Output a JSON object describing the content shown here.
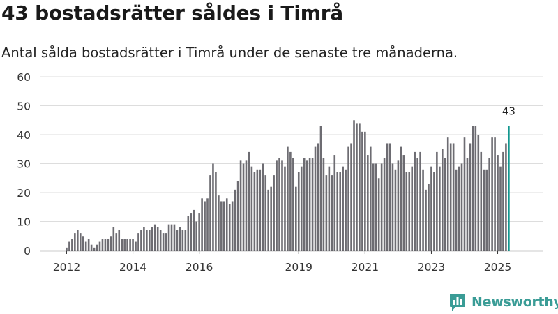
{
  "header": {
    "title": "43 bostadsrätter såldes i Timrå",
    "subtitle": "Antal sålda bostadsrätter i Timrå under de senaste tre månaderna."
  },
  "brand": {
    "name": "Newsworthy",
    "icon": "bar-chart-logo-icon",
    "color": "#3a9c96"
  },
  "colors": {
    "bar": "#6d6c72",
    "highlight": "#12978f",
    "grid": "#dddddd",
    "axis": "#333333"
  },
  "chart_data": {
    "type": "bar",
    "title": "43 bostadsrätter såldes i Timrå",
    "subtitle": "Antal sålda bostadsrätter i Timrå under de senaste tre månaderna.",
    "xlabel": "",
    "ylabel": "",
    "ylim": [
      0,
      60
    ],
    "yticks": [
      0,
      10,
      20,
      30,
      40,
      50,
      60
    ],
    "grid": true,
    "legend": "none",
    "granularity": "monthly, rolling three-month sum",
    "start_period": "2011-12",
    "end_period": "2025-09",
    "x_tick_labels": [
      {
        "label": "2012",
        "period": "2012-01"
      },
      {
        "label": "2014",
        "period": "2014-01"
      },
      {
        "label": "2016",
        "period": "2016-01"
      },
      {
        "label": "2019",
        "period": "2019-01"
      },
      {
        "label": "2021",
        "period": "2021-01"
      },
      {
        "label": "2023",
        "period": "2023-01"
      },
      {
        "label": "2025",
        "period": "2025-01"
      }
    ],
    "values": [
      0,
      1,
      3,
      4,
      6,
      7,
      6,
      5,
      3,
      4,
      2,
      1,
      2,
      3,
      4,
      4,
      4,
      5,
      8,
      6,
      7,
      4,
      4,
      4,
      4,
      4,
      3,
      6,
      7,
      8,
      7,
      7,
      8,
      9,
      8,
      7,
      6,
      6,
      9,
      9,
      9,
      7,
      8,
      7,
      7,
      12,
      13,
      14,
      10,
      13,
      18,
      17,
      18,
      26,
      30,
      27,
      19,
      17,
      17,
      18,
      16,
      17,
      21,
      24,
      31,
      30,
      31,
      34,
      29,
      27,
      28,
      28,
      30,
      26,
      21,
      22,
      26,
      31,
      32,
      31,
      29,
      36,
      34,
      32,
      22,
      27,
      29,
      32,
      31,
      32,
      32,
      36,
      37,
      43,
      32,
      26,
      29,
      26,
      33,
      27,
      27,
      29,
      28,
      36,
      37,
      45,
      44,
      44,
      41,
      41,
      33,
      36,
      30,
      30,
      25,
      30,
      32,
      37,
      37,
      30,
      28,
      31,
      36,
      33,
      27,
      27,
      29,
      34,
      32,
      34,
      28,
      21,
      23,
      29,
      27,
      34,
      29,
      35,
      32,
      39,
      37,
      37,
      28,
      29,
      30,
      39,
      32,
      37,
      43,
      43,
      40,
      34,
      28,
      28,
      32,
      39,
      39,
      33,
      29,
      34,
      37,
      43
    ],
    "highlight": {
      "label": "43",
      "value": 43,
      "period": "2025-09"
    }
  }
}
